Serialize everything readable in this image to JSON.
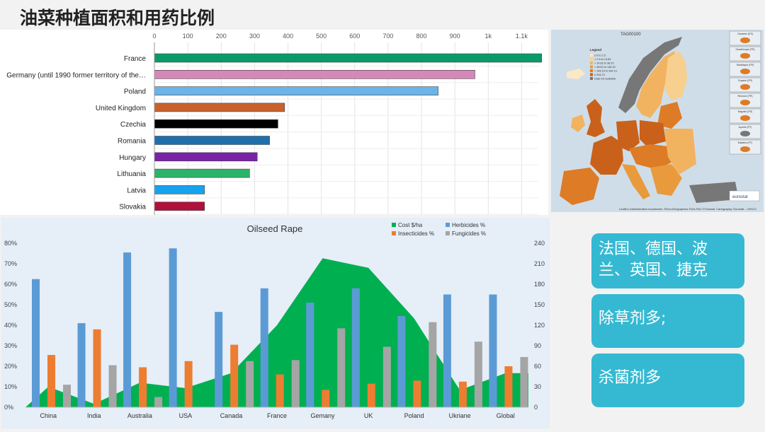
{
  "page": {
    "title": "油菜种植面积和用药比例"
  },
  "chart_data": [
    {
      "type": "bar",
      "orientation": "horizontal",
      "categories": [
        "France",
        "Germany (until 1990 former territory of the…",
        "Poland",
        "United Kingdom",
        "Czechia",
        "Romania",
        "Hungary",
        "Lithuania",
        "Latvia",
        "Slovakia"
      ],
      "values": [
        1160,
        960,
        850,
        390,
        370,
        345,
        308,
        285,
        150,
        150
      ],
      "colors": [
        "#0a9a6a",
        "#d488b8",
        "#6ab4e8",
        "#c8612c",
        "#000000",
        "#1f6fad",
        "#7a22a8",
        "#2cb36a",
        "#17a2ee",
        "#b0113a"
      ],
      "xlim": [
        0,
        1150
      ],
      "xticks": [
        0,
        100,
        200,
        300,
        400,
        500,
        600,
        700,
        800,
        900,
        1000,
        1100
      ],
      "xtick_labels": [
        "0",
        "100",
        "200",
        "300",
        "400",
        "500",
        "600",
        "700",
        "800",
        "900",
        "1k",
        "1.1k"
      ],
      "grid": true
    },
    {
      "type": "bar",
      "title": "Oilseed Rape",
      "categories": [
        "China",
        "India",
        "Australia",
        "USA",
        "Canada",
        "France",
        "Gemany",
        "UK",
        "Poland",
        "Ukriane",
        "Global"
      ],
      "series": [
        {
          "name": "Herbicides %",
          "color": "#5b9bd5",
          "values": [
            62.5,
            41,
            75.5,
            77.5,
            46.5,
            58,
            51,
            58,
            44.5,
            55,
            55
          ]
        },
        {
          "name": "Insecticides %",
          "color": "#ed7d31",
          "values": [
            25.5,
            38,
            19.5,
            22.5,
            30.5,
            16,
            8.5,
            11.5,
            13,
            12.5,
            20
          ]
        },
        {
          "name": "Fungicides %",
          "color": "#a5a5a5",
          "values": [
            11,
            20.5,
            5,
            0,
            22.5,
            23,
            38.5,
            29.5,
            41.5,
            32,
            24.5
          ]
        }
      ],
      "area_series": {
        "name": "Cost $/ha",
        "color": "#00b050",
        "values": [
          30,
          5,
          36,
          28,
          50,
          120,
          218,
          204,
          130,
          25,
          50
        ]
      },
      "ylim_left": [
        0,
        80
      ],
      "yticks_left": [
        "0%",
        "10%",
        "20%",
        "30%",
        "40%",
        "50%",
        "60%",
        "70%",
        "80%"
      ],
      "ylim_right": [
        0,
        240
      ],
      "yticks_right": [
        "0",
        "30",
        "60",
        "90",
        "120",
        "150",
        "180",
        "210",
        "240"
      ],
      "legend": "top-right"
    }
  ],
  "map": {
    "title": "TAG00100",
    "legend_title": "Legend",
    "legend_items": [
      "≤ 0 to 2.5",
      "> 2.5 to 14.83",
      "> 14.83 to 38.52",
      "> 38.52 to 148.15",
      "> 148.15 to 344.13",
      "≥ 344.13",
      "Data not available"
    ],
    "legend_colors": [
      "#fde8c4",
      "#f7cf8e",
      "#f1b360",
      "#e99a3c",
      "#de7b26",
      "#c9611a",
      "#777777"
    ],
    "insets": [
      "Canaries (ES)",
      "Guadeloupe (FR)",
      "Martinique (FR)",
      "Guyane (FR)",
      "Réunion (FR)",
      "Mayotte (FR)",
      "Açores (PT)",
      "Madeira (PT)"
    ],
    "credit": "Leaflet | Administrative boundaries: ©EuroGeographics ©UN-FAO ©Turkstat. Cartography: Eurostat – GISCO",
    "logo": "eurostat"
  },
  "notes": [
    "法国、德国、波兰、英国、捷克",
    "除草剂多;",
    "杀菌剂多"
  ]
}
